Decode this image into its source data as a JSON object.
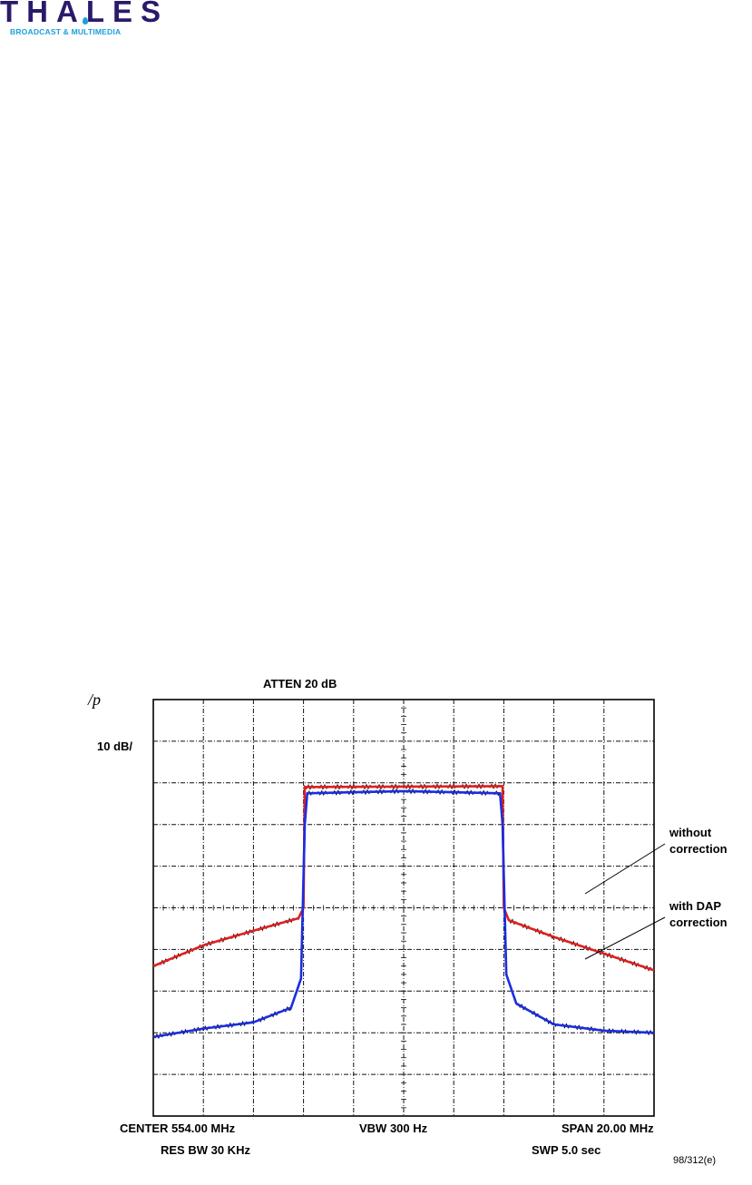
{
  "logo": {
    "name": "THALES",
    "subtitle": "BROADCAST & MULTIMEDIA"
  },
  "chart_data": {
    "type": "line",
    "instrument_logo": "/p",
    "atten": "ATTEN 20 dB",
    "scale": "10 dB/",
    "center": "CENTER 554.00 MHz",
    "vbw": "VBW 300 Hz",
    "span": "SPAN 20.00 MHz",
    "res_bw": "RES BW 30 KHz",
    "swp": "SWP 5.0 sec",
    "figure_ref": "98/312(e)",
    "grid": true,
    "xlim": [
      544.0,
      564.0
    ],
    "ylim": [
      -100,
      0
    ],
    "x_unit": "MHz",
    "y_unit": "dB",
    "annotations": [
      {
        "text_lines": [
          "without",
          "correction"
        ],
        "points_to": "without-correction"
      },
      {
        "text_lines": [
          "with DAP",
          "correction"
        ],
        "points_to": "with-dap-correction"
      }
    ],
    "series": [
      {
        "id": "without-correction",
        "color": "#e02020",
        "x": [
          544.0,
          546.0,
          548.0,
          549.8,
          550.0,
          550.05,
          557.95,
          558.0,
          558.2,
          560.0,
          562.0,
          564.0
        ],
        "y": [
          -64,
          -59,
          -55.5,
          -52.5,
          -50,
          -21,
          -20.8,
          -50,
          -53,
          -57,
          -61,
          -65
        ]
      },
      {
        "id": "with-dap-correction",
        "color": "#1a2ee0",
        "x": [
          544.0,
          546.0,
          548.0,
          549.5,
          549.9,
          550.05,
          550.15,
          554.0,
          557.85,
          557.95,
          558.1,
          558.5,
          560.0,
          562.0,
          564.0
        ],
        "y": [
          -81,
          -79,
          -77.5,
          -74,
          -67,
          -30,
          -22.5,
          -22,
          -22.5,
          -30,
          -66,
          -73,
          -78,
          -79.5,
          -80
        ]
      }
    ]
  }
}
